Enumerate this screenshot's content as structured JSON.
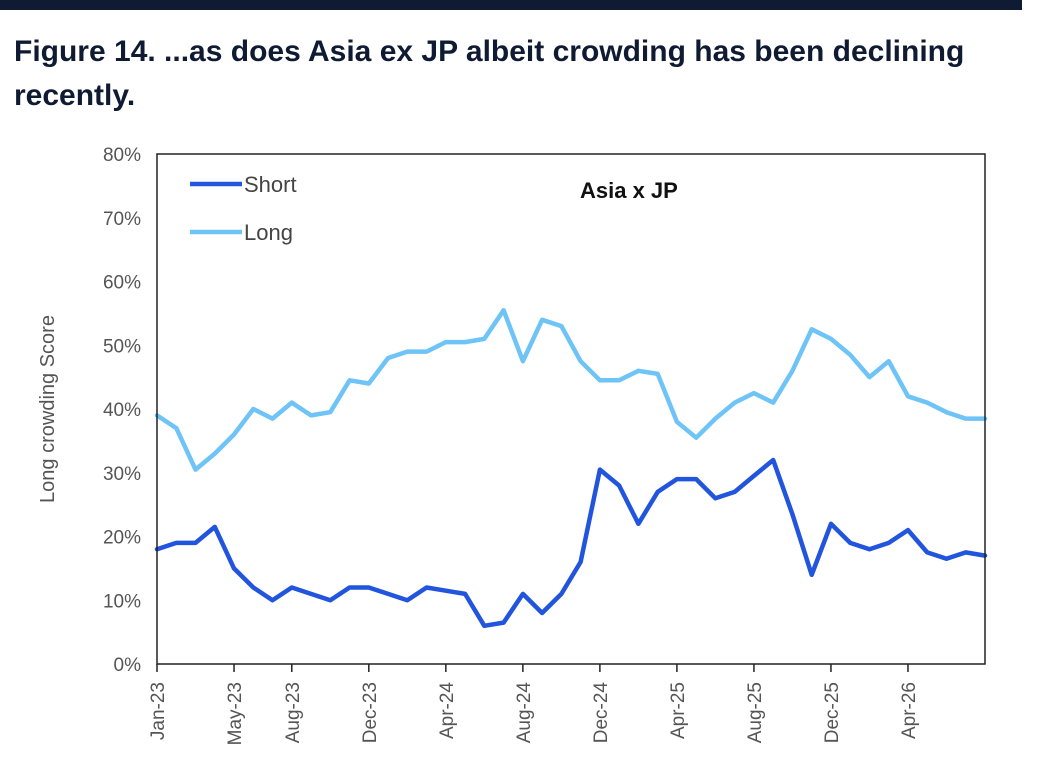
{
  "figure": {
    "title": "Figure 14. ...as does Asia ex JP albeit crowding has been declining recently."
  },
  "colors": {
    "short": "#2255dd",
    "long": "#6ec3f7",
    "axis": "#222222",
    "tick_text": "#555555",
    "header_bar": "#0f1a33"
  },
  "chart_data": {
    "type": "line",
    "title": "Asia x JP",
    "ylabel": "Long crowding Score",
    "xlabel": "",
    "ylim": [
      0,
      80
    ],
    "y_ticks": [
      "0%",
      "10%",
      "20%",
      "30%",
      "40%",
      "50%",
      "60%",
      "70%",
      "80%"
    ],
    "x_tick_labels": [
      "Jan-23",
      "May-23",
      "Aug-23",
      "Dec-23",
      "Apr-24",
      "Aug-24",
      "Dec-24",
      "Apr-25",
      "Aug-25",
      "Dec-25",
      "Apr-26"
    ],
    "x_range": [
      "2023-01",
      "2026-08"
    ],
    "grid": false,
    "legend": "top-left",
    "series": [
      {
        "name": "Short",
        "values": [
          [
            "2023-01",
            18
          ],
          [
            "2023-02",
            19
          ],
          [
            "2023-03",
            19
          ],
          [
            "2023-04",
            21.5
          ],
          [
            "2023-05",
            15
          ],
          [
            "2023-06",
            12
          ],
          [
            "2023-07",
            10
          ],
          [
            "2023-08",
            12
          ],
          [
            "2023-09",
            11
          ],
          [
            "2023-10",
            10
          ],
          [
            "2023-11",
            12
          ],
          [
            "2023-12",
            12
          ],
          [
            "2024-01",
            11
          ],
          [
            "2024-02",
            10
          ],
          [
            "2024-03",
            12
          ],
          [
            "2024-04",
            11.5
          ],
          [
            "2024-05",
            11
          ],
          [
            "2024-06",
            6
          ],
          [
            "2024-07",
            6.5
          ],
          [
            "2024-08",
            11
          ],
          [
            "2024-09",
            8
          ],
          [
            "2024-10",
            11
          ],
          [
            "2024-11",
            16
          ],
          [
            "2024-12",
            30.5
          ],
          [
            "2025-01",
            28
          ],
          [
            "2025-02",
            22
          ],
          [
            "2025-03",
            27
          ],
          [
            "2025-04",
            29
          ],
          [
            "2025-05",
            29
          ],
          [
            "2025-06",
            26
          ],
          [
            "2025-07",
            27
          ],
          [
            "2025-08",
            29.5
          ],
          [
            "2025-09",
            32
          ],
          [
            "2025-10",
            23.5
          ],
          [
            "2025-11",
            14
          ],
          [
            "2025-12",
            22
          ],
          [
            "2026-01",
            19
          ],
          [
            "2026-02",
            18
          ],
          [
            "2026-03",
            19
          ],
          [
            "2026-04",
            21
          ],
          [
            "2026-05",
            17.5
          ],
          [
            "2026-06",
            16.5
          ],
          [
            "2026-07",
            17.5
          ],
          [
            "2026-08",
            17
          ]
        ]
      },
      {
        "name": "Long",
        "values": [
          [
            "2023-01",
            39
          ],
          [
            "2023-02",
            37
          ],
          [
            "2023-03",
            30.5
          ],
          [
            "2023-04",
            33
          ],
          [
            "2023-05",
            36
          ],
          [
            "2023-06",
            40
          ],
          [
            "2023-07",
            38.5
          ],
          [
            "2023-08",
            41
          ],
          [
            "2023-09",
            39
          ],
          [
            "2023-10",
            39.5
          ],
          [
            "2023-11",
            44.5
          ],
          [
            "2023-12",
            44
          ],
          [
            "2024-01",
            48
          ],
          [
            "2024-02",
            49
          ],
          [
            "2024-03",
            49
          ],
          [
            "2024-04",
            50.5
          ],
          [
            "2024-05",
            50.5
          ],
          [
            "2024-06",
            51
          ],
          [
            "2024-07",
            55.5
          ],
          [
            "2024-08",
            47.5
          ],
          [
            "2024-09",
            54
          ],
          [
            "2024-10",
            53
          ],
          [
            "2024-11",
            47.5
          ],
          [
            "2024-12",
            44.5
          ],
          [
            "2025-01",
            44.5
          ],
          [
            "2025-02",
            46
          ],
          [
            "2025-03",
            45.5
          ],
          [
            "2025-04",
            38
          ],
          [
            "2025-05",
            35.5
          ],
          [
            "2025-06",
            38.5
          ],
          [
            "2025-07",
            41
          ],
          [
            "2025-08",
            42.5
          ],
          [
            "2025-09",
            41
          ],
          [
            "2025-10",
            46
          ],
          [
            "2025-11",
            52.5
          ],
          [
            "2025-12",
            51
          ],
          [
            "2026-01",
            48.5
          ],
          [
            "2026-02",
            45
          ],
          [
            "2026-03",
            47.5
          ],
          [
            "2026-04",
            42
          ],
          [
            "2026-05",
            41
          ],
          [
            "2026-06",
            39.5
          ],
          [
            "2026-07",
            38.5
          ],
          [
            "2026-08",
            38.5
          ]
        ]
      }
    ]
  }
}
